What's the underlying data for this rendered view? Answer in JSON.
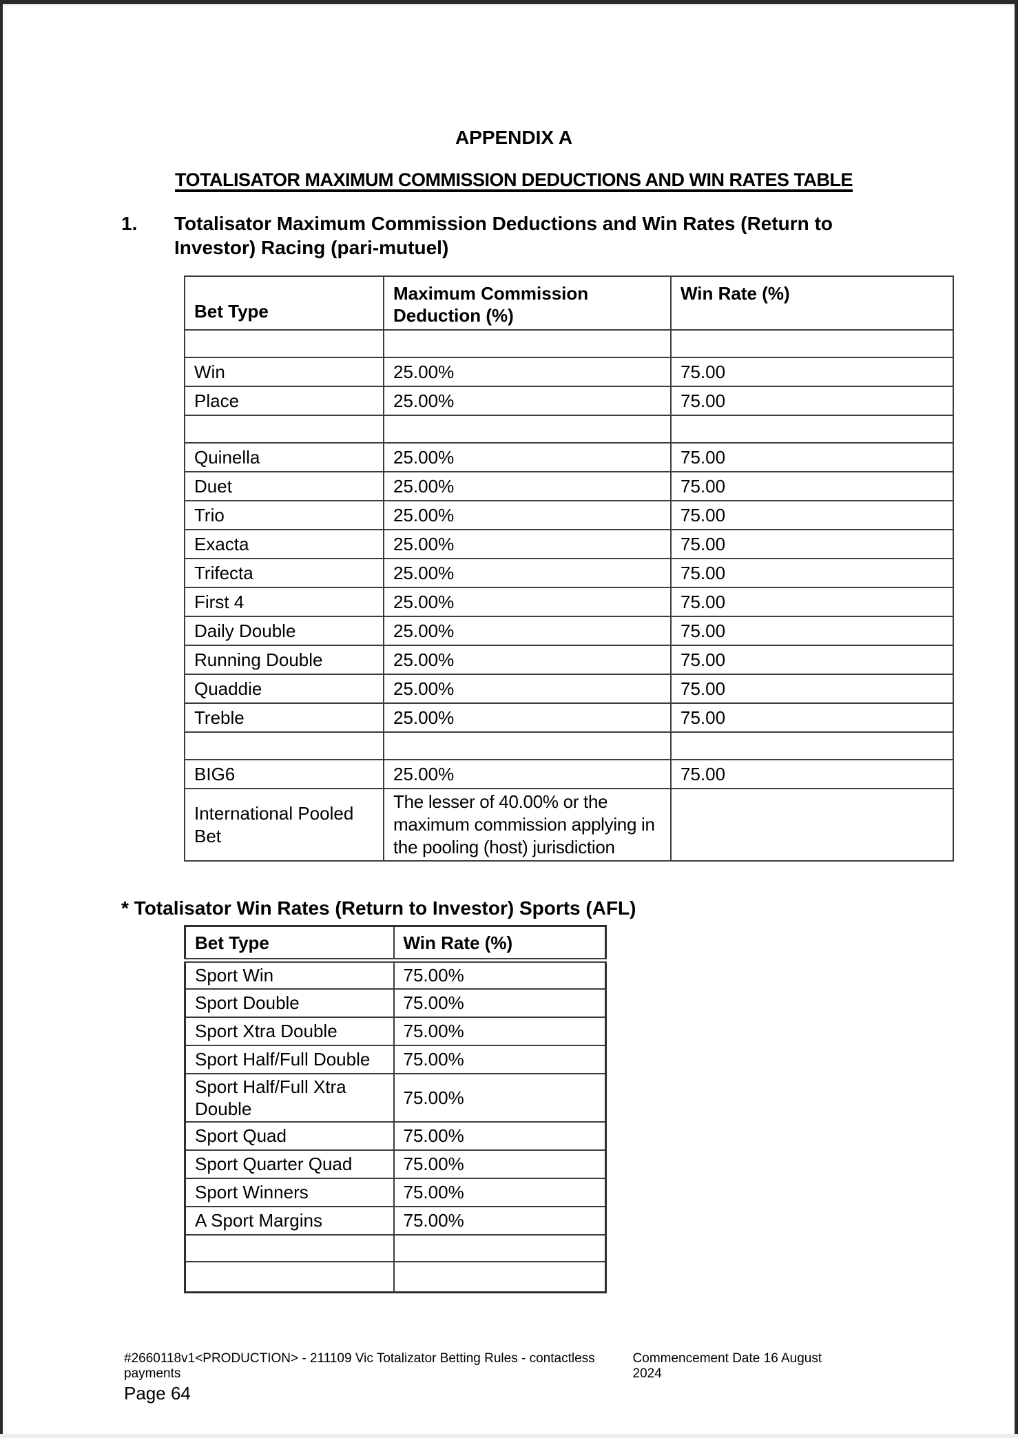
{
  "page": {
    "appendix_title": "APPENDIX A",
    "main_title": "TOTALISATOR MAXIMUM COMMISSION DEDUCTIONS AND WIN RATES TABLE"
  },
  "section_racing": {
    "number": "1.",
    "heading": "Totalisator Maximum Commission Deductions and Win Rates (Return to Investor) Racing (pari-mutuel)",
    "table": {
      "headers": [
        "Bet Type",
        "Maximum Commission Deduction (%)",
        "Win Rate (%)"
      ],
      "rows": [
        {
          "type": "spacer",
          "cells": [
            "",
            "",
            ""
          ]
        },
        {
          "type": "data",
          "cells": [
            "Win",
            "25.00%",
            "75.00"
          ]
        },
        {
          "type": "data",
          "cells": [
            "Place",
            "25.00%",
            "75.00"
          ]
        },
        {
          "type": "spacer",
          "cells": [
            "",
            "",
            ""
          ]
        },
        {
          "type": "data",
          "cells": [
            "Quinella",
            "25.00%",
            "75.00"
          ]
        },
        {
          "type": "data",
          "cells": [
            "Duet",
            "25.00%",
            "75.00"
          ]
        },
        {
          "type": "data",
          "cells": [
            "Trio",
            "25.00%",
            "75.00"
          ]
        },
        {
          "type": "data",
          "cells": [
            "Exacta",
            "25.00%",
            "75.00"
          ]
        },
        {
          "type": "data",
          "cells": [
            "Trifecta",
            "25.00%",
            "75.00"
          ]
        },
        {
          "type": "data",
          "cells": [
            "First 4",
            "25.00%",
            "75.00"
          ]
        },
        {
          "type": "data",
          "cells": [
            "Daily Double",
            "25.00%",
            "75.00"
          ]
        },
        {
          "type": "data",
          "cells": [
            "Running Double",
            "25.00%",
            "75.00"
          ]
        },
        {
          "type": "data",
          "cells": [
            "Quaddie",
            "25.00%",
            "75.00"
          ]
        },
        {
          "type": "data",
          "cells": [
            "Treble",
            "25.00%",
            "75.00"
          ]
        },
        {
          "type": "spacer",
          "cells": [
            "",
            "",
            ""
          ]
        },
        {
          "type": "data",
          "cells": [
            "BIG6",
            "25.00%",
            "75.00"
          ]
        },
        {
          "type": "tall",
          "cells": [
            "International Pooled Bet",
            "The lesser of 40.00% or the maximum commission applying in the pooling (host)  jurisdiction",
            ""
          ]
        }
      ]
    }
  },
  "section_sports": {
    "heading": "* Totalisator Win Rates (Return to Investor) Sports (AFL)",
    "table": {
      "headers": [
        "Bet Type",
        "Win Rate (%)"
      ],
      "rows": [
        {
          "type": "data",
          "cells": [
            "Sport Win",
            "75.00%"
          ]
        },
        {
          "type": "data",
          "cells": [
            "Sport Double",
            "75.00%"
          ]
        },
        {
          "type": "data",
          "cells": [
            "Sport Xtra Double",
            "75.00%"
          ]
        },
        {
          "type": "data",
          "cells": [
            "Sport Half/Full Double",
            "75.00%"
          ]
        },
        {
          "type": "data",
          "cells": [
            "Sport Half/Full Xtra Double",
            "75.00%"
          ]
        },
        {
          "type": "data",
          "cells": [
            "Sport Quad",
            "75.00%"
          ]
        },
        {
          "type": "data",
          "cells": [
            "Sport Quarter Quad",
            "75.00%"
          ]
        },
        {
          "type": "data",
          "cells": [
            "Sport Winners",
            "75.00%"
          ]
        },
        {
          "type": "data",
          "cells": [
            "A Sport Margins",
            "75.00%"
          ]
        },
        {
          "type": "spacer",
          "cells": [
            "",
            ""
          ]
        },
        {
          "type": "spacer",
          "cells": [
            "",
            ""
          ]
        }
      ]
    }
  },
  "footer": {
    "doc_ref": "#2660118v1<PRODUCTION> - 211109 Vic Totalizator Betting Rules - contactless payments",
    "commencement": "Commencement Date 16 August 2024",
    "page_label": "Page 64"
  },
  "colors": {
    "page_background": "#ffffff",
    "text": "#000000",
    "table_border": "#3c3c3c",
    "viewer_frame": "#2a2a2a",
    "page_bottom_edge": "#ededed"
  }
}
